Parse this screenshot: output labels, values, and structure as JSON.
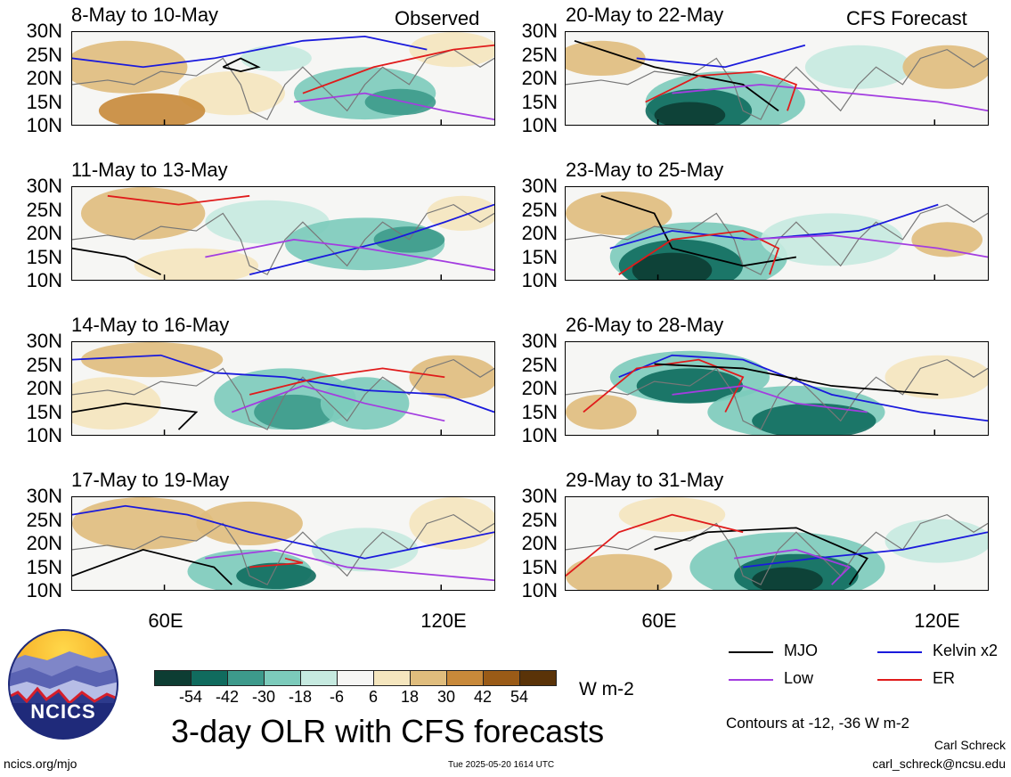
{
  "figure": {
    "title": "3-day OLR with CFS forecasts",
    "observed_label": "Observed",
    "forecast_label": "CFS Forecast",
    "units": "W m-2",
    "contour_note": "Contours at -12, -36 W m-2",
    "author": "Carl Schreck",
    "email": "carl_schreck@ncsu.edu",
    "website": "ncics.org/mjo",
    "timestamp": "Tue 2025-05-20 1614 UTC",
    "logo_text": "NCICS"
  },
  "chart_data": {
    "type": "heatmap",
    "map_region": "Indian Ocean / South Asia",
    "lat_ticks": [
      "30N",
      "25N",
      "20N",
      "15N",
      "10N"
    ],
    "lon_ticks": [
      "60E",
      "120E"
    ],
    "panels": [
      {
        "label": "8-May to 10-May",
        "kind": "Observed"
      },
      {
        "label": "11-May to 13-May",
        "kind": "Observed"
      },
      {
        "label": "14-May to 16-May",
        "kind": "Observed"
      },
      {
        "label": "17-May to 19-May",
        "kind": "Observed"
      },
      {
        "label": "20-May to 22-May",
        "kind": "CFS Forecast"
      },
      {
        "label": "23-May to 25-May",
        "kind": "CFS Forecast"
      },
      {
        "label": "26-May to 28-May",
        "kind": "CFS Forecast"
      },
      {
        "label": "29-May to 31-May",
        "kind": "CFS Forecast"
      }
    ],
    "colorbar": {
      "labels": [
        "-54",
        "-42",
        "-30",
        "-18",
        "-6",
        "6",
        "18",
        "30",
        "42",
        "54"
      ],
      "colors": [
        "#0d3d33",
        "#106b5e",
        "#3d9a8b",
        "#7ccbbb",
        "#c6eae0",
        "#f6f6f4",
        "#f5e6be",
        "#e0bd7d",
        "#c8893a",
        "#9a5b17",
        "#5a3308"
      ]
    },
    "contour_legend": [
      {
        "name": "MJO",
        "color": "#000000"
      },
      {
        "name": "Kelvin x2",
        "color": "#1a1adc"
      },
      {
        "name": "Low",
        "color": "#a33de0"
      },
      {
        "name": "ER",
        "color": "#e01b1b"
      }
    ]
  }
}
